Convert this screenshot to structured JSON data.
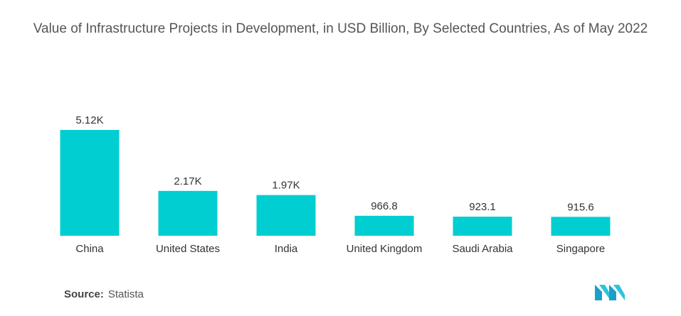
{
  "title": "Value of Infrastructure Projects in Development, in USD Billion, By Selected Countries, As of May 2022",
  "source": {
    "label": "Source:",
    "value": "Statista"
  },
  "colors": {
    "bar": "#00CED1",
    "text": "#333333"
  },
  "logo_icon": "mordor-intelligence-logo-icon",
  "chart_data": {
    "type": "bar",
    "title": "Value of Infrastructure Projects in Development, in USD Billion, By Selected Countries, As of May 2022",
    "xlabel": "",
    "ylabel": "",
    "categories": [
      "China",
      "United States",
      "India",
      "United Kingdom",
      "Saudi Arabia",
      "Singapore"
    ],
    "values": [
      5120,
      2170,
      1970,
      966.8,
      923.1,
      915.6
    ],
    "value_labels": [
      "5.12K",
      "2.17K",
      "1.97K",
      "966.8",
      "923.1",
      "915.6"
    ],
    "ylim": [
      0,
      5120
    ],
    "grid": false,
    "legend": "none"
  }
}
